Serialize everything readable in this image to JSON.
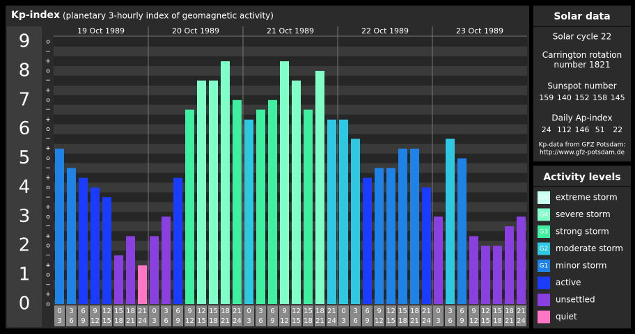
{
  "chart_data": {
    "type": "bar",
    "title": "Kp-index",
    "subtitle": "(planetary 3-hourly index of geomagnetic activity)",
    "days": [
      "19 Oct 1989",
      "20 Oct 1989",
      "21 Oct 1989",
      "22 Oct 1989",
      "23 Oct 1989"
    ],
    "time_slots": [
      {
        "from": "0",
        "to": "3"
      },
      {
        "from": "3",
        "to": "6"
      },
      {
        "from": "6",
        "to": "9"
      },
      {
        "from": "9",
        "to": "12"
      },
      {
        "from": "12",
        "to": "15"
      },
      {
        "from": "15",
        "to": "18"
      },
      {
        "from": "18",
        "to": "21"
      },
      {
        "from": "21",
        "to": "24"
      }
    ],
    "values": [
      5.33,
      4.67,
      4.33,
      4,
      3.67,
      1.67,
      2.33,
      1.33,
      2.33,
      3,
      4.33,
      6.67,
      7.67,
      7.67,
      8.33,
      7,
      6.33,
      6.67,
      7,
      8.33,
      7.67,
      6.67,
      8,
      6.33,
      6.33,
      5.67,
      4.33,
      4.67,
      4.67,
      5.33,
      5.33,
      4,
      3,
      5.67,
      5,
      2.33,
      2,
      2,
      2.67,
      3
    ],
    "colors": [
      "#1f82e6",
      "#1f82e6",
      "#1a3cff",
      "#1a3cff",
      "#1a3cff",
      "#8a3fe0",
      "#8a3fe0",
      "#ff77c4",
      "#8a3fe0",
      "#8a3fe0",
      "#1a3cff",
      "#3ff0a0",
      "#80ffc8",
      "#80ffc8",
      "#80ffc8",
      "#3ff0a0",
      "#2ec8e2",
      "#3ff0a0",
      "#3ff0a0",
      "#80ffc8",
      "#80ffc8",
      "#3ff0a0",
      "#80ffc8",
      "#2ec8e2",
      "#2ec8e2",
      "#2ec8e2",
      "#1a3cff",
      "#1f82e6",
      "#1f82e6",
      "#1f82e6",
      "#1f82e6",
      "#1a3cff",
      "#8a3fe0",
      "#2ec8e2",
      "#1f82e6",
      "#8a3fe0",
      "#8a3fe0",
      "#8a3fe0",
      "#8a3fe0",
      "#8a3fe0"
    ],
    "ylim": [
      0,
      9
    ],
    "yticks": [
      0,
      1,
      2,
      3,
      4,
      5,
      6,
      7,
      8,
      9
    ],
    "minor_ticks": [
      {
        "value": 0,
        "label": "o"
      },
      {
        "value": 0.33,
        "label": "+"
      },
      {
        "value": 0.67,
        "label": "−"
      },
      {
        "value": 1,
        "label": "o"
      },
      {
        "value": 1.33,
        "label": "+"
      },
      {
        "value": 1.67,
        "label": "−"
      },
      {
        "value": 2,
        "label": "o"
      },
      {
        "value": 2.33,
        "label": "+"
      },
      {
        "value": 2.67,
        "label": "−"
      },
      {
        "value": 3,
        "label": "o"
      },
      {
        "value": 3.33,
        "label": "+"
      },
      {
        "value": 3.67,
        "label": "−"
      },
      {
        "value": 4,
        "label": "o"
      },
      {
        "value": 4.33,
        "label": "+"
      },
      {
        "value": 4.67,
        "label": "−"
      },
      {
        "value": 5,
        "label": "o"
      },
      {
        "value": 5.33,
        "label": "+"
      },
      {
        "value": 5.67,
        "label": "−"
      },
      {
        "value": 6,
        "label": "o"
      },
      {
        "value": 6.33,
        "label": "+"
      },
      {
        "value": 6.67,
        "label": "−"
      },
      {
        "value": 7,
        "label": "o"
      },
      {
        "value": 7.33,
        "label": "+"
      },
      {
        "value": 7.67,
        "label": "−"
      },
      {
        "value": 8,
        "label": "o"
      },
      {
        "value": 8.33,
        "label": "+"
      },
      {
        "value": 8.67,
        "label": "−"
      },
      {
        "value": 9,
        "label": "o"
      }
    ],
    "legend_title": "Activity levels",
    "legend": [
      {
        "label": "extreme storm",
        "color": "#c8fff0",
        "icon": "G5"
      },
      {
        "label": "severe storm",
        "color": "#80ffc8",
        "icon": "G4"
      },
      {
        "label": "strong storm",
        "color": "#3ff0a0",
        "icon": "G3"
      },
      {
        "label": "moderate storm",
        "color": "#2ec8e2",
        "icon": "G2"
      },
      {
        "label": "minor storm",
        "color": "#1f82e6",
        "icon": "G1"
      },
      {
        "label": "active",
        "color": "#1a3cff"
      },
      {
        "label": "unsettled",
        "color": "#8a3fe0"
      },
      {
        "label": "quiet",
        "color": "#ff77c4"
      }
    ]
  },
  "solar_data": {
    "title": "Solar data",
    "cycle": "Solar cycle 22",
    "carrington": "Carrington rotation number 1821",
    "sunspot_title": "Sunspot number",
    "sunspot": [
      159,
      140,
      152,
      158,
      145
    ],
    "ap_title": "Daily Ap-index",
    "ap": [
      24,
      112,
      146,
      51,
      22
    ],
    "source": "Kp-data from GFZ Potsdam:",
    "url": "http://www.gfz-potsdam.de"
  }
}
